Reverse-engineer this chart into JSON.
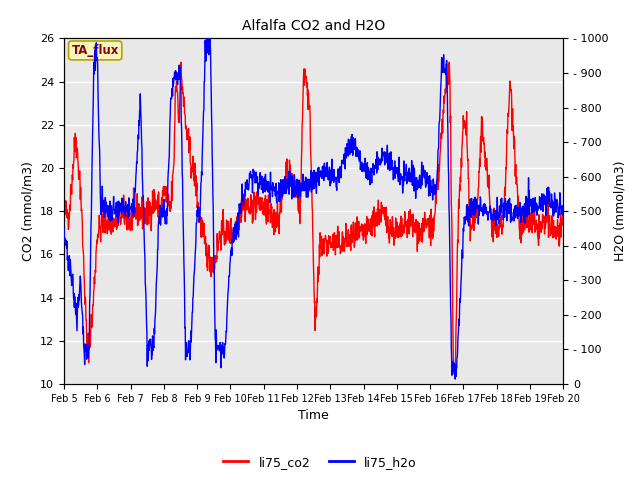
{
  "title": "Alfalfa CO2 and H2O",
  "xlabel": "Time",
  "ylabel_left": "CO2 (mmol/m3)",
  "ylabel_right": "H2O (mmol/m3)",
  "ylim_left": [
    10,
    26
  ],
  "ylim_right": [
    0,
    1000
  ],
  "yticks_left": [
    10,
    12,
    14,
    16,
    18,
    20,
    22,
    24,
    26
  ],
  "yticks_right": [
    0,
    100,
    200,
    300,
    400,
    500,
    600,
    700,
    800,
    900,
    1000
  ],
  "xtick_labels": [
    "Feb 5",
    "Feb 6",
    "Feb 7",
    "Feb 8",
    "Feb 9",
    "Feb 10",
    "Feb 11",
    "Feb 12",
    "Feb 13",
    "Feb 14",
    "Feb 15",
    "Feb 16",
    "Feb 17",
    "Feb 18",
    "Feb 19",
    "Feb 20"
  ],
  "annotation_text": "TA_flux",
  "annotation_box_facecolor": "#f5f5c0",
  "annotation_box_edgecolor": "#b8a000",
  "legend_labels": [
    "li75_co2",
    "li75_h2o"
  ],
  "legend_colors": [
    "red",
    "blue"
  ],
  "line_color_co2": "red",
  "line_color_h2o": "blue",
  "line_width": 1.0,
  "plot_bg_color": "#e8e8e8"
}
